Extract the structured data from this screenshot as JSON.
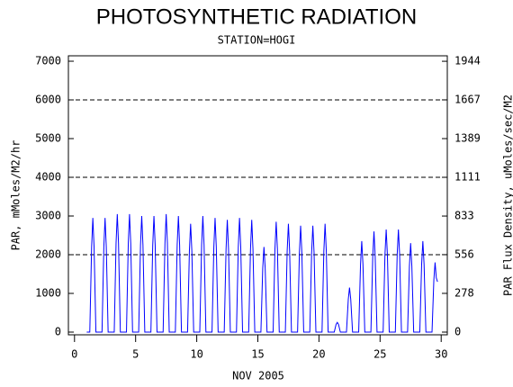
{
  "chart_data": {
    "type": "line",
    "title": "PHOTOSYNTHETIC RADIATION",
    "subtitle": "STATION=HOGI",
    "xlabel": "NOV 2005",
    "ylabel": "PAR, mMoles/M2/hr",
    "y2label": "PAR Flux Density, uMoles/sec/M2",
    "xlim": [
      -0.5,
      30.5
    ],
    "xticks": [
      0,
      5,
      10,
      15,
      20,
      25,
      30
    ],
    "ylim": [
      -70,
      7140
    ],
    "yticks": [
      0,
      1000,
      2000,
      3000,
      4000,
      5000,
      6000,
      7000
    ],
    "y2lim": [
      -19.4,
      1983.3
    ],
    "y2ticks": [
      0,
      278,
      556,
      833,
      1111,
      1389,
      1667,
      1944
    ],
    "grid": true,
    "series": [
      {
        "name": "PAR",
        "color": "#0000ff",
        "x": [
          1.0,
          1.25,
          1.4,
          1.5,
          1.6,
          1.75,
          2.25,
          2.4,
          2.5,
          2.6,
          2.75,
          3.25,
          3.4,
          3.5,
          3.6,
          3.75,
          4.25,
          4.4,
          4.5,
          4.6,
          4.75,
          5.25,
          5.4,
          5.5,
          5.6,
          5.75,
          6.25,
          6.4,
          6.5,
          6.6,
          6.75,
          7.25,
          7.4,
          7.5,
          7.6,
          7.75,
          8.25,
          8.4,
          8.5,
          8.6,
          8.75,
          9.25,
          9.4,
          9.5,
          9.6,
          9.75,
          10.25,
          10.4,
          10.5,
          10.6,
          10.75,
          11.25,
          11.4,
          11.5,
          11.6,
          11.75,
          12.25,
          12.4,
          12.5,
          12.6,
          12.75,
          13.25,
          13.4,
          13.5,
          13.6,
          13.75,
          14.25,
          14.4,
          14.5,
          14.6,
          14.75,
          15.25,
          15.4,
          15.5,
          15.6,
          15.75,
          16.25,
          16.4,
          16.5,
          16.6,
          16.75,
          17.25,
          17.4,
          17.5,
          17.6,
          17.75,
          18.25,
          18.4,
          18.5,
          18.6,
          18.75,
          19.25,
          19.4,
          19.5,
          19.6,
          19.75,
          20.25,
          20.4,
          20.5,
          20.6,
          20.75,
          21.25,
          21.4,
          21.5,
          21.6,
          21.75,
          22.25,
          22.4,
          22.5,
          22.6,
          22.75,
          23.25,
          23.4,
          23.5,
          23.6,
          23.75,
          24.25,
          24.4,
          24.5,
          24.6,
          24.75,
          25.25,
          25.4,
          25.5,
          25.6,
          25.75,
          26.25,
          26.4,
          26.5,
          26.6,
          26.75,
          27.25,
          27.4,
          27.5,
          27.6,
          27.75,
          28.25,
          28.4,
          28.5,
          28.6,
          28.75,
          29.25,
          29.4,
          29.5,
          29.6,
          29.7
        ],
        "values": [
          0,
          0,
          2200,
          2950,
          2200,
          0,
          0,
          2200,
          2950,
          2200,
          0,
          0,
          2300,
          3050,
          2300,
          0,
          0,
          2300,
          3050,
          2300,
          0,
          0,
          2250,
          3000,
          2250,
          0,
          0,
          2250,
          3000,
          2250,
          0,
          0,
          2300,
          3050,
          2300,
          0,
          0,
          2250,
          3000,
          2250,
          0,
          0,
          2100,
          2800,
          2100,
          0,
          0,
          2250,
          3000,
          2250,
          0,
          0,
          2200,
          2950,
          2200,
          0,
          0,
          2150,
          2900,
          2150,
          0,
          0,
          2200,
          2950,
          2200,
          0,
          0,
          2150,
          2900,
          2150,
          0,
          0,
          1650,
          2200,
          1650,
          0,
          0,
          2150,
          2850,
          2150,
          0,
          0,
          2100,
          2800,
          2100,
          0,
          0,
          2050,
          2750,
          2050,
          0,
          0,
          2050,
          2750,
          2050,
          0,
          0,
          2100,
          2800,
          2100,
          0,
          0,
          200,
          250,
          200,
          0,
          0,
          850,
          1150,
          850,
          0,
          0,
          1750,
          2350,
          1750,
          0,
          0,
          1950,
          2600,
          1950,
          0,
          0,
          2000,
          2650,
          2000,
          0,
          0,
          2000,
          2650,
          2000,
          0,
          0,
          1700,
          2300,
          1700,
          0,
          0,
          1750,
          2350,
          1750,
          0,
          0,
          1350,
          1800,
          1400,
          1300
        ]
      }
    ]
  }
}
